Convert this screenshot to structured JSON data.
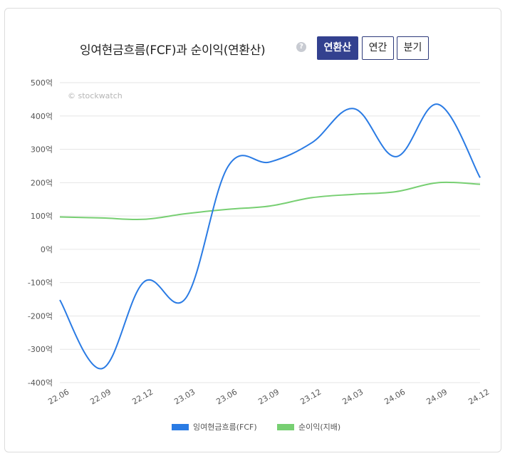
{
  "header": {
    "title": "잉여현금흐름(FCF)과 순이익(연환산)",
    "help_symbol": "?",
    "buttons": [
      {
        "label": "연환산",
        "active": true
      },
      {
        "label": "연간",
        "active": false
      },
      {
        "label": "분기",
        "active": false
      }
    ]
  },
  "watermark": "© stockwatch",
  "chart_data": {
    "type": "line",
    "title": "잉여현금흐름(FCF)과 순이익(연환산)",
    "xlabel": "",
    "ylabel": "",
    "categories": [
      "22.06",
      "22.09",
      "22.12",
      "23.03",
      "23.06",
      "23.09",
      "23.12",
      "24.03",
      "24.06",
      "24.09",
      "24.12"
    ],
    "y_ticks": [
      "500억",
      "400억",
      "300억",
      "200억",
      "100억",
      "0억",
      "-100억",
      "-200억",
      "-300억",
      "-400억"
    ],
    "ylim": [
      -400,
      500
    ],
    "y_unit": "억",
    "grid": true,
    "legend_position": "bottom",
    "series": [
      {
        "name": "잉여현금흐름(FCF)",
        "color": "#2a7be4",
        "values": [
          -152,
          -358,
          -98,
          -146,
          248,
          262,
          320,
          422,
          278,
          435,
          215
        ]
      },
      {
        "name": "순이익(지배)",
        "color": "#77cf72",
        "values": [
          97,
          94,
          90,
          107,
          120,
          130,
          155,
          165,
          173,
          200,
          195
        ]
      }
    ]
  }
}
